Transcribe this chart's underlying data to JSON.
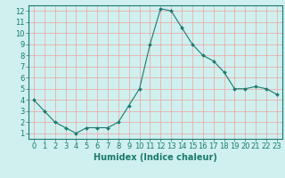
{
  "x": [
    0,
    1,
    2,
    3,
    4,
    5,
    6,
    7,
    8,
    9,
    10,
    11,
    12,
    13,
    14,
    15,
    16,
    17,
    18,
    19,
    20,
    21,
    22,
    23
  ],
  "y": [
    4.0,
    3.0,
    2.0,
    1.5,
    1.0,
    1.5,
    1.5,
    1.5,
    2.0,
    3.5,
    5.0,
    9.0,
    12.2,
    12.0,
    10.5,
    9.0,
    8.0,
    7.5,
    6.5,
    5.0,
    5.0,
    5.2,
    5.0,
    4.5
  ],
  "line_color": "#1a7a6e",
  "marker": "D",
  "marker_size": 2,
  "bg_color": "#cff0ee",
  "grid_color": "#f0a0a0",
  "axis_color": "#1a7a6e",
  "xlabel": "Humidex (Indice chaleur)",
  "xlim": [
    -0.5,
    23.5
  ],
  "ylim": [
    0.5,
    12.5
  ],
  "xticks": [
    0,
    1,
    2,
    3,
    4,
    5,
    6,
    7,
    8,
    9,
    10,
    11,
    12,
    13,
    14,
    15,
    16,
    17,
    18,
    19,
    20,
    21,
    22,
    23
  ],
  "yticks": [
    1,
    2,
    3,
    4,
    5,
    6,
    7,
    8,
    9,
    10,
    11,
    12
  ],
  "xlabel_fontsize": 7,
  "tick_fontsize": 6
}
